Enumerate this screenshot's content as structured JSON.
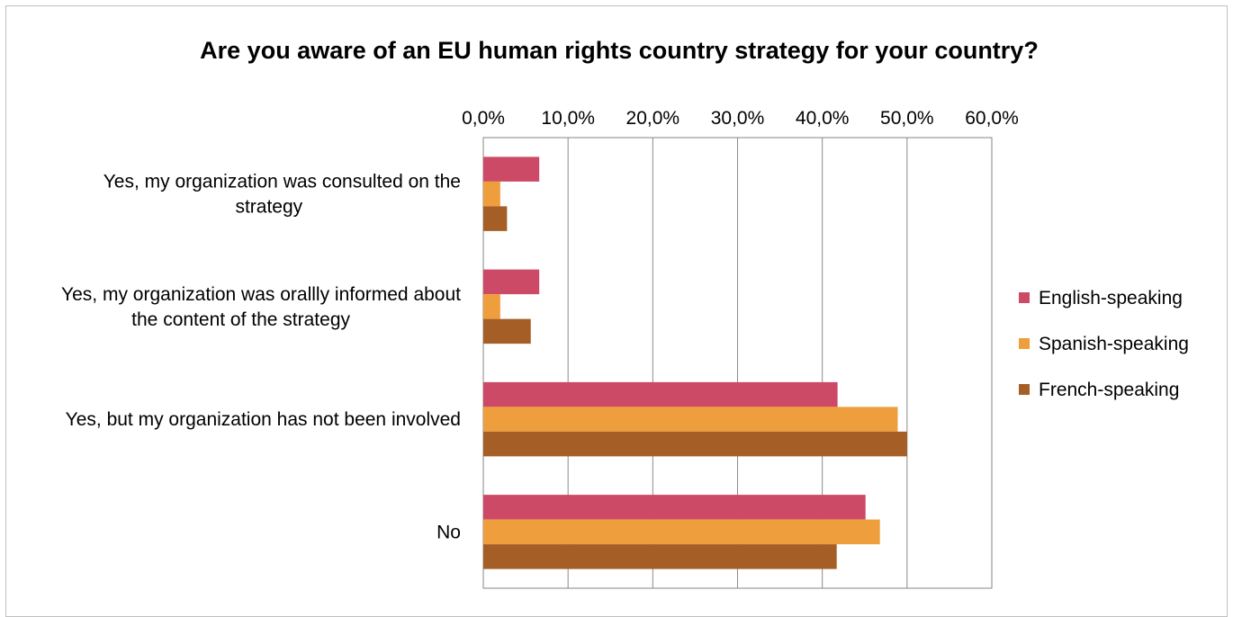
{
  "chart_data": {
    "type": "bar",
    "orientation": "horizontal",
    "title": "Are you aware of an EU human rights country strategy for your country?",
    "xlabel": "",
    "ylabel": "",
    "xlim": [
      0,
      60
    ],
    "tick_labels": [
      "0,0%",
      "10,0%",
      "20,0%",
      "30,0%",
      "40,0%",
      "50,0%",
      "60,0%"
    ],
    "tick_values": [
      0,
      10,
      20,
      30,
      40,
      50,
      60
    ],
    "tick_position": "top",
    "grid": true,
    "legend_position": "right",
    "categories": [
      {
        "lines": [
          "Yes, my organization was consulted on the",
          "strategy"
        ]
      },
      {
        "lines": [
          "Yes, my organization was orallly informed about",
          "the content of the strategy"
        ]
      },
      {
        "lines": [
          "Yes, but my organization has not been involved"
        ]
      },
      {
        "lines": [
          "No"
        ]
      }
    ],
    "series": [
      {
        "name": "English-speaking",
        "color": "#cc4a65",
        "values": [
          6.6,
          6.6,
          41.8,
          45.1
        ]
      },
      {
        "name": "Spanish-speaking",
        "color": "#ee9e3c",
        "values": [
          2.0,
          2.0,
          48.9,
          46.8
        ]
      },
      {
        "name": "French-speaking",
        "color": "#a55e26",
        "values": [
          2.8,
          5.6,
          50.0,
          41.7
        ]
      }
    ]
  }
}
